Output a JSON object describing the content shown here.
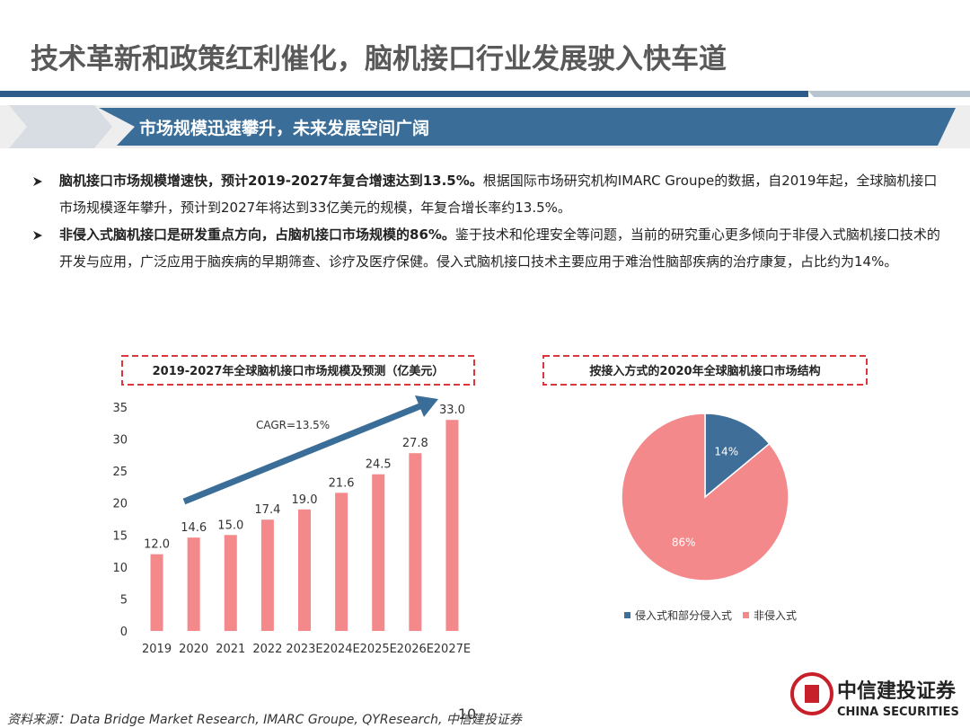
{
  "title": "技术革新和政策红利催化，脑机接口行业发展驶入快车道",
  "section": "市场规模迅速攀升，未来发展空间广阔",
  "bullets": [
    {
      "bold": "脑机接口市场规模增速快，预计2019-2027年复合增速达到13.5%。",
      "text": "根据国际市场研究机构IMARC Groupe的数据，自2019年起，全球脑机接口市场规模逐年攀升，预计到2027年将达到33亿美元的规模，年复合增长率约13.5%。"
    },
    {
      "bold": "非侵入式脑机接口是研发重点方向，占脑机接口市场规模的86%。",
      "text": "鉴于技术和伦理安全等问题，当前的研究重心更多倾向于非侵入式脑机接口技术的开发与应用，广泛应用于脑疾病的早期筛查、诊疗及医疗保健。侵入式脑机接口技术主要应用于难治性脑部疾病的治疗康复，占比约为14%。"
    }
  ],
  "chart_data": [
    {
      "type": "bar",
      "title": "2019-2027年全球脑机接口市场规模及预测（亿美元）",
      "annotation": "CAGR=13.5%",
      "categories": [
        "2019",
        "2020",
        "2021",
        "2022",
        "2023E",
        "2024E",
        "2025E",
        "2026E",
        "2027E"
      ],
      "values": [
        12.0,
        14.6,
        15.0,
        17.4,
        19.0,
        21.6,
        24.5,
        27.8,
        33.0
      ],
      "value_labels": [
        "12.0",
        "14.6",
        "15.0",
        "17.4",
        "19.0",
        "21.6",
        "24.5",
        "27.8",
        "33.0"
      ],
      "color": "#f4898b",
      "ylim": [
        0,
        35
      ],
      "yticks": [
        0,
        5,
        10,
        15,
        20,
        25,
        30,
        35
      ]
    },
    {
      "type": "pie",
      "title": "按接入方式的2020年全球脑机接口市场结构",
      "categories": [
        "侵入式和部分侵入式",
        "非侵入式"
      ],
      "values": [
        14,
        86
      ],
      "value_labels": [
        "14%",
        "86%"
      ],
      "colors": [
        "#3f6f98",
        "#f4898b"
      ]
    }
  ],
  "source": "资料来源：Data Bridge Market Research, IMARC Groupe, QYResearch, 中信建投证券",
  "page_number": "10",
  "logo": "中信建投证券",
  "logo_en": "CHINA SECURITIES"
}
